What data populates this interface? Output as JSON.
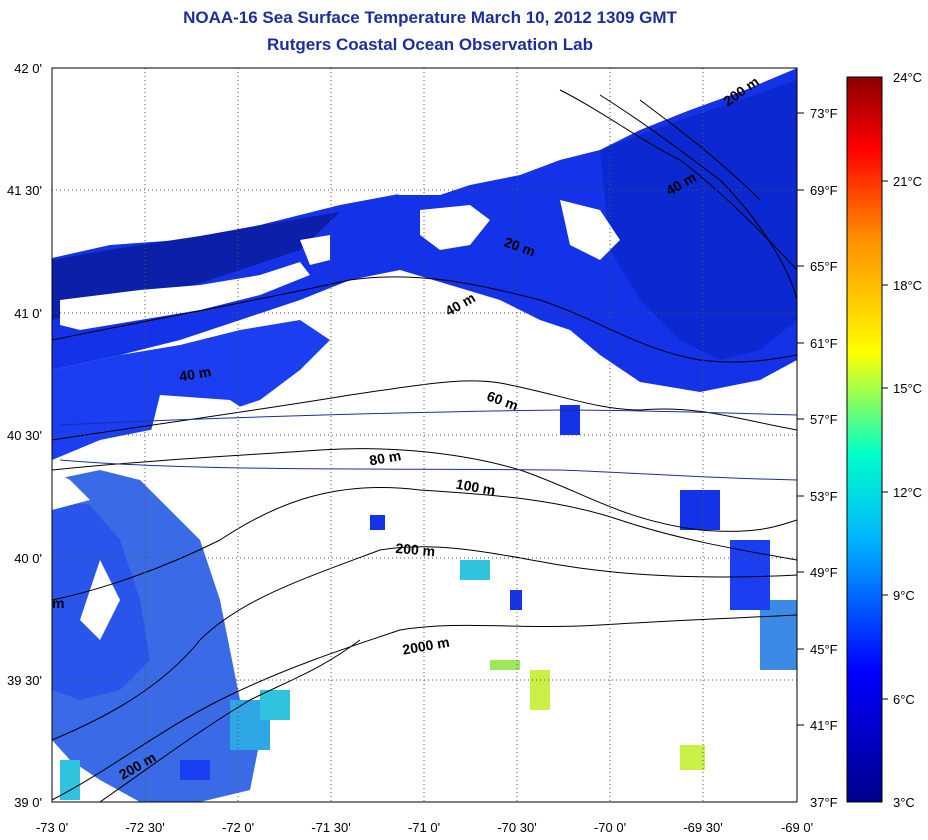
{
  "title": "NOAA-16 Sea Surface Temperature March 10, 2012 1309 GMT",
  "subtitle": "Rutgers Coastal Ocean Observation Lab",
  "lon_ticks": [
    "-73 0'",
    "-72 30'",
    "-72 0'",
    "-71 30'",
    "-71 0'",
    "-70 30'",
    "-70 0'",
    "-69 30'",
    "-69 0'"
  ],
  "lat_ticks": [
    "42 0'",
    "41 30'",
    "41 0'",
    "40 30'",
    "40 0'",
    "39 30'",
    "39 0'"
  ],
  "fahrenheit_ticks": [
    "73°F",
    "69°F",
    "65°F",
    "61°F",
    "57°F",
    "53°F",
    "49°F",
    "45°F",
    "41°F",
    "37°F"
  ],
  "celsius_ticks": [
    "24°C",
    "21°C",
    "18°C",
    "15°C",
    "12°C",
    "9°C",
    "6°C",
    "3°C"
  ],
  "isobath_labels": [
    "200 m",
    "40 m",
    "20 m",
    "40 m",
    "40 m",
    "60 m",
    "80 m",
    "100 m",
    "200 m",
    "2000 m",
    "200 m",
    "m"
  ],
  "colors": {
    "title": "#1c2e9e",
    "land": "#ffffff",
    "water_main": "#1432e8",
    "water_dark": "#0c1fa8",
    "water_light": "#3a6ae6",
    "water_cyan": "#2fc3e0",
    "water_yellow": "#c8f046"
  }
}
